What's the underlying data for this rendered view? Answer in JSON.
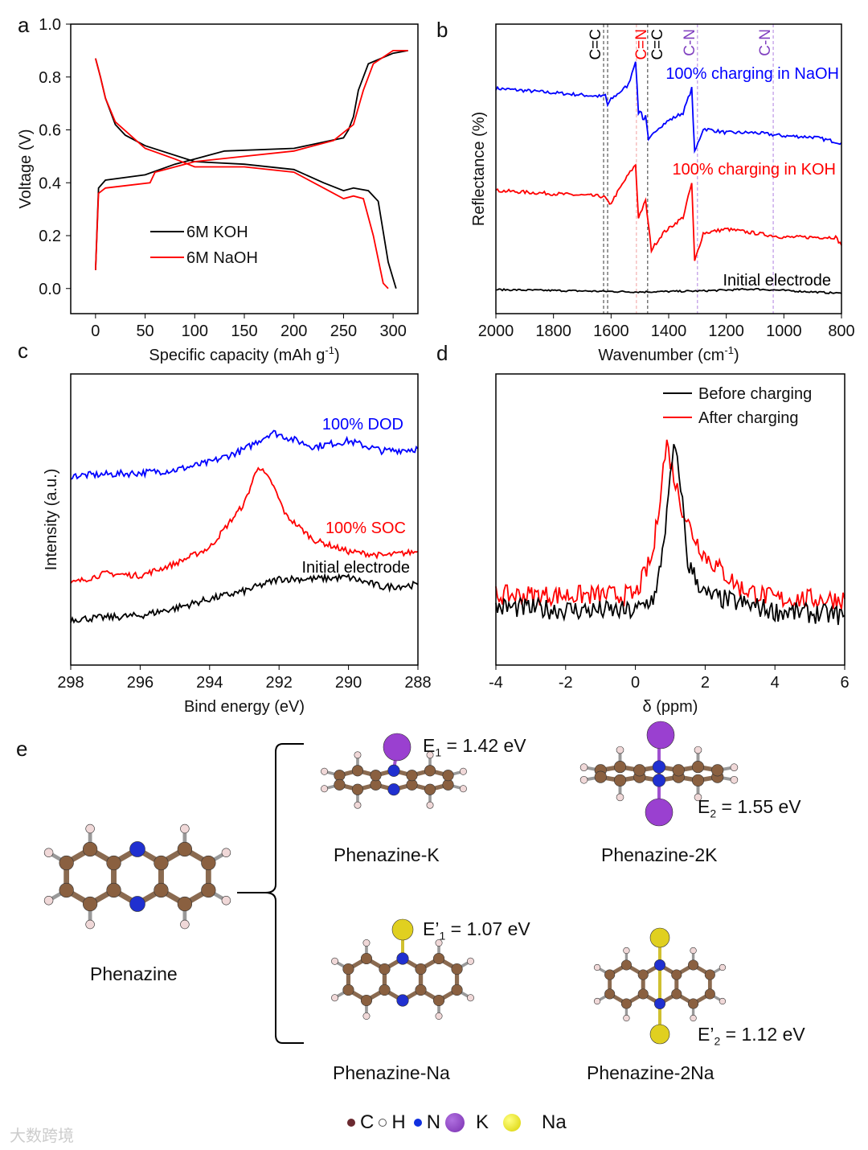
{
  "panel_labels": [
    "a",
    "b",
    "c",
    "d",
    "e"
  ],
  "chart_data": [
    {
      "id": "a",
      "type": "line",
      "xlabel": "Specific capacity (mAh g",
      "xlabel_sup": "-1",
      "xlabel_end": ")",
      "ylabel": "Voltage (V)",
      "xlim": [
        -25,
        325
      ],
      "ylim": [
        -0.095,
        1.0
      ],
      "xticks": [
        0,
        50,
        100,
        150,
        200,
        250,
        300
      ],
      "yticks": [
        "0.0",
        "0.2",
        "0.4",
        "0.6",
        "0.8",
        "1.0"
      ],
      "legend": [
        {
          "name": "6M KOH",
          "color": "#000000"
        },
        {
          "name": "6M NaOH",
          "color": "#ff0000"
        }
      ],
      "series": [
        {
          "name": "6M KOH discharge",
          "color": "#000000",
          "noise": 0,
          "points": [
            [
              0,
              0.87
            ],
            [
              5,
              0.8
            ],
            [
              10,
              0.72
            ],
            [
              20,
              0.62
            ],
            [
              30,
              0.58
            ],
            [
              50,
              0.54
            ],
            [
              100,
              0.48
            ],
            [
              150,
              0.47
            ],
            [
              200,
              0.45
            ],
            [
              230,
              0.4
            ],
            [
              250,
              0.37
            ],
            [
              260,
              0.38
            ],
            [
              275,
              0.37
            ],
            [
              285,
              0.33
            ],
            [
              295,
              0.1
            ],
            [
              303,
              0.0
            ]
          ]
        },
        {
          "name": "6M KOH charge",
          "color": "#000000",
          "noise": 0,
          "points": [
            [
              0,
              0.07
            ],
            [
              3,
              0.38
            ],
            [
              10,
              0.41
            ],
            [
              50,
              0.43
            ],
            [
              80,
              0.47
            ],
            [
              100,
              0.49
            ],
            [
              130,
              0.52
            ],
            [
              200,
              0.53
            ],
            [
              250,
              0.57
            ],
            [
              255,
              0.6
            ],
            [
              260,
              0.65
            ],
            [
              265,
              0.75
            ],
            [
              275,
              0.85
            ],
            [
              300,
              0.89
            ],
            [
              315,
              0.9
            ]
          ]
        },
        {
          "name": "6M NaOH discharge",
          "color": "#ff0000",
          "noise": 0,
          "points": [
            [
              0,
              0.87
            ],
            [
              5,
              0.8
            ],
            [
              10,
              0.72
            ],
            [
              20,
              0.63
            ],
            [
              50,
              0.53
            ],
            [
              80,
              0.49
            ],
            [
              100,
              0.46
            ],
            [
              150,
              0.46
            ],
            [
              200,
              0.44
            ],
            [
              230,
              0.38
            ],
            [
              250,
              0.34
            ],
            [
              260,
              0.35
            ],
            [
              270,
              0.34
            ],
            [
              280,
              0.2
            ],
            [
              290,
              0.02
            ],
            [
              295,
              0.0
            ]
          ]
        },
        {
          "name": "6M NaOH charge",
          "color": "#ff0000",
          "noise": 0,
          "points": [
            [
              0,
              0.07
            ],
            [
              3,
              0.36
            ],
            [
              10,
              0.38
            ],
            [
              55,
              0.4
            ],
            [
              60,
              0.44
            ],
            [
              100,
              0.48
            ],
            [
              150,
              0.5
            ],
            [
              200,
              0.52
            ],
            [
              240,
              0.56
            ],
            [
              260,
              0.62
            ],
            [
              270,
              0.75
            ],
            [
              280,
              0.85
            ],
            [
              300,
              0.9
            ],
            [
              315,
              0.9
            ]
          ]
        }
      ]
    },
    {
      "id": "b",
      "type": "line",
      "xlabel": "Wavenumber (cm",
      "xlabel_sup": "-1",
      "xlabel_end": ")",
      "ylabel": "Reflectance (%)",
      "xlim": [
        2000,
        800
      ],
      "ylim": [
        0,
        100
      ],
      "xticks": [
        2000,
        1800,
        1600,
        1400,
        1200,
        1000,
        800
      ],
      "markers": [
        {
          "x": 1626,
          "label": "C=C",
          "color": "#000000"
        },
        {
          "x": 1612,
          "label": "",
          "color": "#000000"
        },
        {
          "x": 1512,
          "label": "C=N",
          "color": "#ff0000"
        },
        {
          "x": 1473,
          "label": "C=C",
          "color": "#000000"
        },
        {
          "x": 1300,
          "label": "C-N",
          "color": "#8040c0"
        },
        {
          "x": 1037,
          "label": "C-N",
          "color": "#8040c0"
        }
      ],
      "annotations": [
        {
          "text": "100% charging in NaOH",
          "color": "#0000ff"
        },
        {
          "text": "100% charging in KOH",
          "color": "#ff0000"
        },
        {
          "text": "Initial electrode",
          "color": "#000000"
        }
      ],
      "series": [
        {
          "name": "100% charging in NaOH",
          "color": "#0000ff",
          "noise": 0.6,
          "points": [
            [
              2000,
              77.8
            ],
            [
              1630,
              75
            ],
            [
              1620,
              75.5
            ],
            [
              1612,
              72
            ],
            [
              1600,
              74
            ],
            [
              1540,
              79
            ],
            [
              1515,
              87.5
            ],
            [
              1505,
              69.4
            ],
            [
              1495,
              70
            ],
            [
              1490,
              67
            ],
            [
              1480,
              68
            ],
            [
              1470,
              59.7
            ],
            [
              1440,
              63.9
            ],
            [
              1400,
              66.7
            ],
            [
              1350,
              69.4
            ],
            [
              1320,
              77.8
            ],
            [
              1310,
              55.6
            ],
            [
              1280,
              63.9
            ],
            [
              1200,
              62.5
            ],
            [
              1100,
              62.5
            ],
            [
              1000,
              61.4
            ],
            [
              900,
              61
            ],
            [
              800,
              59
            ]
          ]
        },
        {
          "name": "100% charging in KOH",
          "color": "#ff0000",
          "noise": 0.6,
          "points": [
            [
              2000,
              42.5
            ],
            [
              1630,
              40.5
            ],
            [
              1620,
              40
            ],
            [
              1605,
              37.5
            ],
            [
              1540,
              48
            ],
            [
              1515,
              51.4
            ],
            [
              1505,
              33.3
            ],
            [
              1480,
              38.9
            ],
            [
              1460,
              22
            ],
            [
              1420,
              27.8
            ],
            [
              1350,
              33.3
            ],
            [
              1320,
              45
            ],
            [
              1310,
              18
            ],
            [
              1280,
              27.8
            ],
            [
              1200,
              29.2
            ],
            [
              1000,
              26.4
            ],
            [
              820,
              26.4
            ],
            [
              800,
              23.6
            ]
          ]
        },
        {
          "name": "Initial electrode",
          "color": "#000000",
          "noise": 0.3,
          "points": [
            [
              2000,
              8.3
            ],
            [
              1500,
              7.5
            ],
            [
              1300,
              7.8
            ],
            [
              1100,
              8.5
            ],
            [
              800,
              7
            ]
          ]
        }
      ]
    },
    {
      "id": "c",
      "type": "line",
      "xlabel": "Bind energy (eV)",
      "ylabel": "Intensity (a.u.)",
      "xlim": [
        298,
        288
      ],
      "ylim": [
        0,
        100
      ],
      "xticks": [
        298,
        296,
        294,
        292,
        290,
        288
      ],
      "annotations": [
        {
          "text": "100% DOD",
          "color": "#0000ff"
        },
        {
          "text": "100% SOC",
          "color": "#ff0000"
        },
        {
          "text": "Initial electrode",
          "color": "#000000"
        }
      ],
      "series": [
        {
          "name": "100% DOD",
          "color": "#0000ff",
          "noise": 1.2,
          "points": [
            [
              298,
              65
            ],
            [
              296,
              66
            ],
            [
              295,
              67
            ],
            [
              294,
              69.6
            ],
            [
              293,
              74
            ],
            [
              292.2,
              80
            ],
            [
              291,
              75
            ],
            [
              290,
              77
            ],
            [
              289,
              73.5
            ],
            [
              288,
              74.3
            ]
          ]
        },
        {
          "name": "100% SOC",
          "color": "#ff0000",
          "noise": 1.0,
          "points": [
            [
              298,
              28
            ],
            [
              297,
              31.5
            ],
            [
              296,
              30.7
            ],
            [
              295,
              34.8
            ],
            [
              294,
              40.3
            ],
            [
              293,
              55.5
            ],
            [
              292.6,
              68.5
            ],
            [
              292.2,
              62.4
            ],
            [
              291.8,
              51.4
            ],
            [
              291,
              43
            ],
            [
              290,
              39
            ],
            [
              289,
              37.6
            ],
            [
              288,
              39
            ]
          ]
        },
        {
          "name": "Initial electrode",
          "color": "#000000",
          "noise": 1.2,
          "points": [
            [
              298,
              15.7
            ],
            [
              296,
              17
            ],
            [
              295,
              19.5
            ],
            [
              294,
              22.7
            ],
            [
              293,
              25.4
            ],
            [
              292,
              29.6
            ],
            [
              291,
              29.6
            ],
            [
              290,
              30.1
            ],
            [
              289,
              26.8
            ],
            [
              288,
              27.6
            ]
          ]
        }
      ]
    },
    {
      "id": "d",
      "type": "line",
      "xlabel": "δ (ppm)",
      "xlim": [
        -4,
        6
      ],
      "ylim": [
        0,
        100
      ],
      "xticks": [
        -4,
        -2,
        0,
        2,
        4,
        6
      ],
      "legend": [
        {
          "name": "Before charging",
          "color": "#000000"
        },
        {
          "name": "After charging",
          "color": "#ff0000"
        }
      ],
      "series": [
        {
          "name": "After charging",
          "color": "#ff0000",
          "noise": 3.5,
          "points": [
            [
              -4,
              24
            ],
            [
              -2,
              24
            ],
            [
              0,
              24
            ],
            [
              0.5,
              37.6
            ],
            [
              0.8,
              67.9
            ],
            [
              0.9,
              76
            ],
            [
              1.1,
              65
            ],
            [
              1.3,
              55.5
            ],
            [
              1.6,
              46
            ],
            [
              2,
              37.6
            ],
            [
              3,
              26.5
            ],
            [
              4,
              22.7
            ],
            [
              6,
              22.7
            ]
          ]
        },
        {
          "name": "Before charging",
          "color": "#000000",
          "noise": 3.5,
          "points": [
            [
              -4,
              19.9
            ],
            [
              -2,
              19
            ],
            [
              0,
              18.5
            ],
            [
              0.6,
              24
            ],
            [
              0.9,
              51.4
            ],
            [
              1.1,
              75
            ],
            [
              1.3,
              62.4
            ],
            [
              1.5,
              35
            ],
            [
              2,
              24
            ],
            [
              4,
              18.5
            ],
            [
              6,
              17
            ]
          ]
        }
      ]
    }
  ],
  "panel_e": {
    "phenazine": "Phenazine",
    "structures": [
      {
        "name": "Phenazine-K",
        "energy_label": "E",
        "energy_sub": "1",
        "energy_value": " = 1.42 eV"
      },
      {
        "name": "Phenazine-2K",
        "energy_label": "E",
        "energy_sub": "2",
        "energy_value": " = 1.55 eV"
      },
      {
        "name": "Phenazine-Na",
        "energy_label": "E’",
        "energy_sub": "1",
        "energy_value": " = 1.07 eV"
      },
      {
        "name": "Phenazine-2Na",
        "energy_label": "E’",
        "energy_sub": "2",
        "energy_value": " = 1.12 eV"
      }
    ],
    "legend": [
      {
        "el": "C",
        "color": "#6b2a30"
      },
      {
        "el": "H",
        "color": "#ffffff"
      },
      {
        "el": "N",
        "color": "#1030e0"
      },
      {
        "el": "K",
        "color": "#8a3fc0"
      },
      {
        "el": "Na",
        "color": "#e8e020"
      }
    ],
    "atom_colors": {
      "C": "#8a6040",
      "H": "#f0d8d8",
      "N": "#2030d0",
      "K": "#9a40d0",
      "Na": "#e0d020"
    }
  },
  "watermark": "大数跨境"
}
